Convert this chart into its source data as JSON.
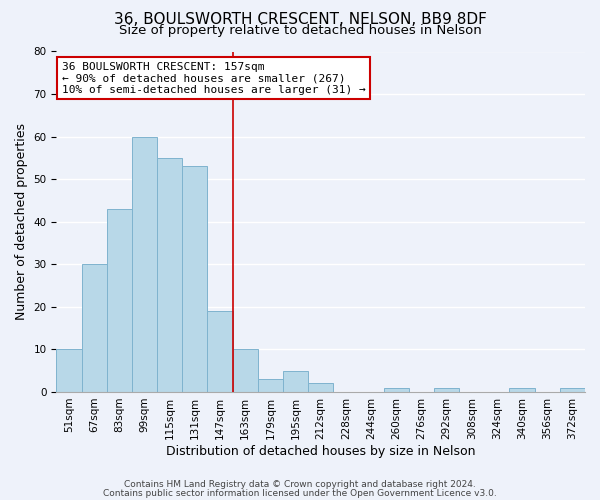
{
  "title": "36, BOULSWORTH CRESCENT, NELSON, BB9 8DF",
  "subtitle": "Size of property relative to detached houses in Nelson",
  "xlabel": "Distribution of detached houses by size in Nelson",
  "ylabel": "Number of detached properties",
  "bin_labels": [
    "51sqm",
    "67sqm",
    "83sqm",
    "99sqm",
    "115sqm",
    "131sqm",
    "147sqm",
    "163sqm",
    "179sqm",
    "195sqm",
    "212sqm",
    "228sqm",
    "244sqm",
    "260sqm",
    "276sqm",
    "292sqm",
    "308sqm",
    "324sqm",
    "340sqm",
    "356sqm",
    "372sqm"
  ],
  "bar_heights": [
    10,
    30,
    43,
    60,
    55,
    53,
    19,
    10,
    3,
    5,
    2,
    0,
    0,
    1,
    0,
    1,
    0,
    0,
    1,
    0,
    1
  ],
  "bar_color": "#b8d8e8",
  "bar_edge_color": "#7fb3ce",
  "vline_x": 7,
  "vline_color": "#cc0000",
  "annotation_text": "36 BOULSWORTH CRESCENT: 157sqm\n← 90% of detached houses are smaller (267)\n10% of semi-detached houses are larger (31) →",
  "annotation_box_color": "#ffffff",
  "annotation_box_edge": "#cc0000",
  "ylim": [
    0,
    80
  ],
  "yticks": [
    0,
    10,
    20,
    30,
    40,
    50,
    60,
    70,
    80
  ],
  "footer_line1": "Contains HM Land Registry data © Crown copyright and database right 2024.",
  "footer_line2": "Contains public sector information licensed under the Open Government Licence v3.0.",
  "background_color": "#eef2fa",
  "grid_color": "#ffffff",
  "title_fontsize": 11,
  "subtitle_fontsize": 9.5,
  "axis_label_fontsize": 9,
  "tick_fontsize": 7.5,
  "annotation_fontsize": 8,
  "footer_fontsize": 6.5
}
